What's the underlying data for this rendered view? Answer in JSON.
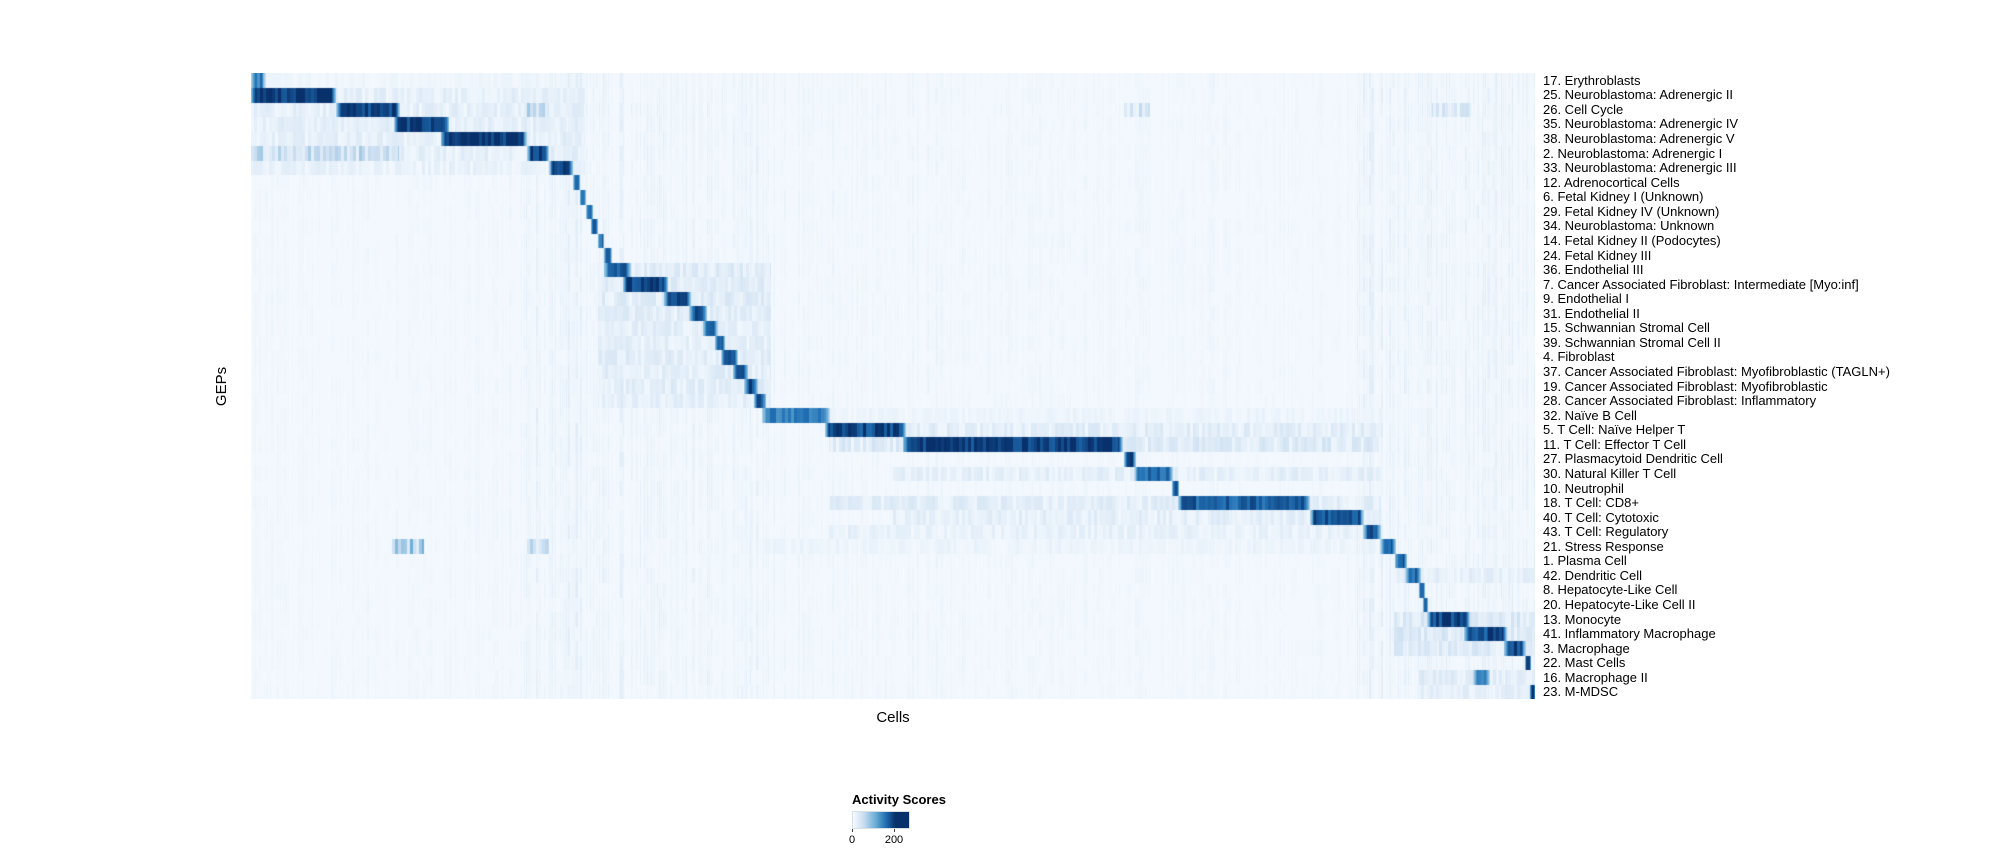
{
  "figure": {
    "y_axis_label": "GEPs",
    "x_axis_label": "Cells",
    "legend": {
      "title": "Activity Scores",
      "min_label": "0",
      "max_label": "200"
    },
    "colors": {
      "scale": [
        "#f7fbff",
        "#c6dbef",
        "#6baed6",
        "#2171b5",
        "#08306b"
      ],
      "background": "#ffffff",
      "text": "#000000"
    }
  },
  "chart_data": {
    "type": "heatmap",
    "title": "",
    "xlabel": "Cells",
    "ylabel": "GEPs",
    "colorbar": {
      "label": "Activity Scores",
      "ticks": [
        0,
        200
      ],
      "colormap": "Blues",
      "max_label_position_fraction": 0.75
    },
    "x_units": "single cells ordered by cluster; block positions are fractions 0-1 of the x-axis",
    "value_units": "GEP activity score (approx. 0-215, colorbar labeled to 200)",
    "n_rows": 43,
    "rows": [
      {
        "label": "17. Erythroblasts",
        "blocks": [
          [
            0.0,
            0.26,
            8
          ],
          [
            0.0,
            0.012,
            150
          ]
        ]
      },
      {
        "label": "25. Neuroblastoma: Adrenergic II",
        "blocks": [
          [
            0.0,
            0.26,
            18
          ],
          [
            0.0,
            0.066,
            210
          ]
        ]
      },
      {
        "label": "26. Cell Cycle",
        "blocks": [
          [
            0.0,
            0.26,
            18
          ],
          [
            0.066,
            0.116,
            205
          ],
          [
            0.215,
            0.232,
            55
          ],
          [
            0.68,
            0.7,
            35
          ],
          [
            0.92,
            0.95,
            30
          ]
        ]
      },
      {
        "label": "35. Neuroblastoma: Adrenergic IV",
        "blocks": [
          [
            0.0,
            0.26,
            18
          ],
          [
            0.111,
            0.154,
            205
          ]
        ]
      },
      {
        "label": "38. Neuroblastoma: Adrenergic V",
        "blocks": [
          [
            0.0,
            0.26,
            18
          ],
          [
            0.148,
            0.215,
            210
          ]
        ]
      },
      {
        "label": "2. Neuroblastoma: Adrenergic I",
        "blocks": [
          [
            0.0,
            0.115,
            45
          ],
          [
            0.115,
            0.26,
            18
          ],
          [
            0.215,
            0.232,
            200
          ]
        ]
      },
      {
        "label": "33. Neuroblastoma: Adrenergic III",
        "blocks": [
          [
            0.0,
            0.26,
            15
          ],
          [
            0.232,
            0.251,
            200
          ]
        ]
      },
      {
        "label": "12. Adrenocortical Cells",
        "blocks": [
          [
            0.251,
            0.256,
            170
          ]
        ]
      },
      {
        "label": "6. Fetal Kidney I (Unknown)",
        "blocks": [
          [
            0.256,
            0.261,
            170
          ]
        ]
      },
      {
        "label": "29. Fetal Kidney IV (Unknown)",
        "blocks": [
          [
            0.261,
            0.266,
            170
          ]
        ]
      },
      {
        "label": "34. Neuroblastoma: Unknown",
        "blocks": [
          [
            0.265,
            0.27,
            170
          ]
        ]
      },
      {
        "label": "14. Fetal Kidney II (Podocytes)",
        "blocks": [
          [
            0.27,
            0.275,
            170
          ]
        ]
      },
      {
        "label": "24. Fetal Kidney III",
        "blocks": [
          [
            0.275,
            0.281,
            170
          ]
        ]
      },
      {
        "label": "36. Endothelial III",
        "blocks": [
          [
            0.27,
            0.405,
            22
          ],
          [
            0.275,
            0.296,
            190
          ]
        ]
      },
      {
        "label": "7. Cancer Associated Fibroblast: Intermediate [Myo:inf]",
        "blocks": [
          [
            0.27,
            0.405,
            22
          ],
          [
            0.29,
            0.325,
            205
          ]
        ]
      },
      {
        "label": "9. Endothelial I",
        "blocks": [
          [
            0.27,
            0.405,
            22
          ],
          [
            0.322,
            0.343,
            195
          ]
        ]
      },
      {
        "label": "31. Endothelial II",
        "blocks": [
          [
            0.27,
            0.405,
            20
          ],
          [
            0.341,
            0.355,
            190
          ]
        ]
      },
      {
        "label": "15. Schwannian Stromal Cell",
        "blocks": [
          [
            0.27,
            0.405,
            20
          ],
          [
            0.352,
            0.364,
            190
          ]
        ]
      },
      {
        "label": "39. Schwannian Stromal Cell II",
        "blocks": [
          [
            0.27,
            0.405,
            18
          ],
          [
            0.361,
            0.369,
            185
          ]
        ]
      },
      {
        "label": "4. Fibroblast",
        "blocks": [
          [
            0.27,
            0.405,
            20
          ],
          [
            0.366,
            0.379,
            190
          ]
        ]
      },
      {
        "label": "37. Cancer Associated Fibroblast: Myofibroblastic (TAGLN+)",
        "blocks": [
          [
            0.27,
            0.405,
            20
          ],
          [
            0.375,
            0.387,
            190
          ]
        ]
      },
      {
        "label": "19. Cancer Associated Fibroblast: Myofibroblastic",
        "blocks": [
          [
            0.27,
            0.405,
            20
          ],
          [
            0.384,
            0.395,
            190
          ]
        ]
      },
      {
        "label": "28. Cancer Associated Fibroblast: Inflammatory",
        "blocks": [
          [
            0.27,
            0.405,
            18
          ],
          [
            0.392,
            0.401,
            185
          ]
        ]
      },
      {
        "label": "32. Naïve B Cell",
        "blocks": [
          [
            0.4,
            0.88,
            10
          ],
          [
            0.398,
            0.451,
            150
          ]
        ]
      },
      {
        "label": "5. T Cell: Naïve Helper T",
        "blocks": [
          [
            0.45,
            0.88,
            20
          ],
          [
            0.447,
            0.51,
            195
          ]
        ]
      },
      {
        "label": "11. T Cell: Effector T Cell",
        "blocks": [
          [
            0.45,
            0.88,
            25
          ],
          [
            0.508,
            0.679,
            205
          ]
        ]
      },
      {
        "label": "27. Plasmacytoid Dendritic Cell",
        "blocks": [
          [
            0.68,
            0.689,
            185
          ]
        ]
      },
      {
        "label": "30. Natural Killer T Cell",
        "blocks": [
          [
            0.5,
            0.88,
            18
          ],
          [
            0.688,
            0.718,
            160
          ]
        ]
      },
      {
        "label": "10. Neutrophil",
        "blocks": [
          [
            0.717,
            0.723,
            175
          ]
        ]
      },
      {
        "label": "18. T Cell: CD8+",
        "blocks": [
          [
            0.45,
            0.88,
            20
          ],
          [
            0.722,
            0.825,
            175
          ]
        ]
      },
      {
        "label": "40. T Cell: Cytotoxic",
        "blocks": [
          [
            0.5,
            0.88,
            18
          ],
          [
            0.825,
            0.867,
            185
          ]
        ]
      },
      {
        "label": "43. T Cell: Regulatory",
        "blocks": [
          [
            0.45,
            0.87,
            15
          ],
          [
            0.866,
            0.88,
            175
          ]
        ]
      },
      {
        "label": "21. Stress Response",
        "blocks": [
          [
            0.4,
            0.88,
            10
          ],
          [
            0.11,
            0.135,
            70
          ],
          [
            0.215,
            0.232,
            40
          ],
          [
            0.879,
            0.892,
            175
          ]
        ]
      },
      {
        "label": "1. Plasma Cell",
        "blocks": [
          [
            0.891,
            0.9,
            185
          ]
        ]
      },
      {
        "label": "42. Dendritic Cell",
        "blocks": [
          [
            0.89,
            1.0,
            18
          ],
          [
            0.899,
            0.911,
            175
          ]
        ]
      },
      {
        "label": "8. Hepatocyte-Like Cell",
        "blocks": [
          [
            0.91,
            0.914,
            165
          ]
        ]
      },
      {
        "label": "20. Hepatocyte-Like Cell II",
        "blocks": [
          [
            0.913,
            0.917,
            165
          ]
        ]
      },
      {
        "label": "13. Monocyte",
        "blocks": [
          [
            0.89,
            1.0,
            28
          ],
          [
            0.916,
            0.949,
            195
          ]
        ]
      },
      {
        "label": "41. Inflammatory Macrophage",
        "blocks": [
          [
            0.89,
            1.0,
            28
          ],
          [
            0.945,
            0.978,
            185
          ],
          [
            0.96,
            0.978,
            205
          ]
        ]
      },
      {
        "label": "3. Macrophage",
        "blocks": [
          [
            0.89,
            1.0,
            25
          ],
          [
            0.976,
            0.993,
            195
          ]
        ]
      },
      {
        "label": "22. Mast Cells",
        "blocks": [
          [
            0.992,
            0.997,
            185
          ]
        ]
      },
      {
        "label": "16. Macrophage II",
        "blocks": [
          [
            0.91,
            1.0,
            20
          ],
          [
            0.952,
            0.965,
            150
          ]
        ]
      },
      {
        "label": "23. M-MDSC",
        "blocks": [
          [
            0.91,
            1.0,
            18
          ],
          [
            0.996,
            1.0,
            205
          ]
        ]
      }
    ]
  }
}
